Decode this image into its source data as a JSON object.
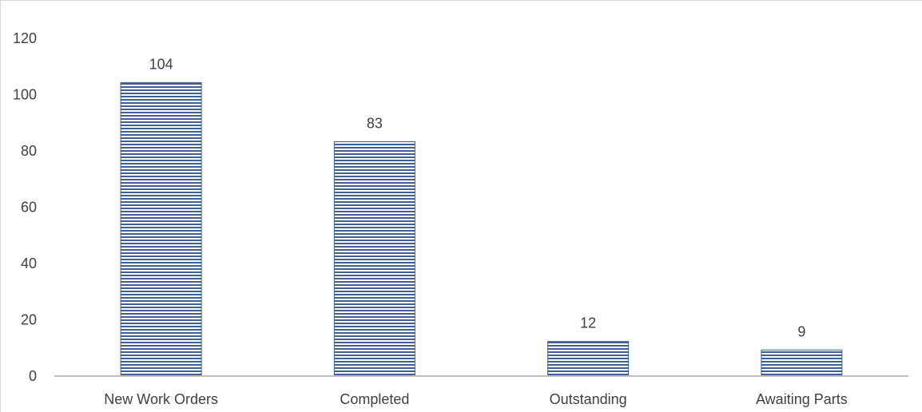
{
  "chart_data": {
    "type": "bar",
    "categories": [
      "New Work Orders",
      "Completed",
      "Outstanding",
      "Awaiting Parts"
    ],
    "values": [
      104,
      83,
      12,
      9
    ],
    "data_labels": [
      "104",
      "83",
      "12",
      "9"
    ],
    "title": "",
    "xlabel": "",
    "ylabel": "",
    "ylim": [
      0,
      120
    ],
    "yticks": [
      "0",
      "20",
      "40",
      "60",
      "80",
      "100",
      "120"
    ],
    "grid": false,
    "legend": "none",
    "colors": {
      "bar_stripe_dark": "#3d5f93",
      "bar_stripe_light": "#ffffff",
      "axis": "#bfbfbf",
      "text": "#404040"
    }
  }
}
